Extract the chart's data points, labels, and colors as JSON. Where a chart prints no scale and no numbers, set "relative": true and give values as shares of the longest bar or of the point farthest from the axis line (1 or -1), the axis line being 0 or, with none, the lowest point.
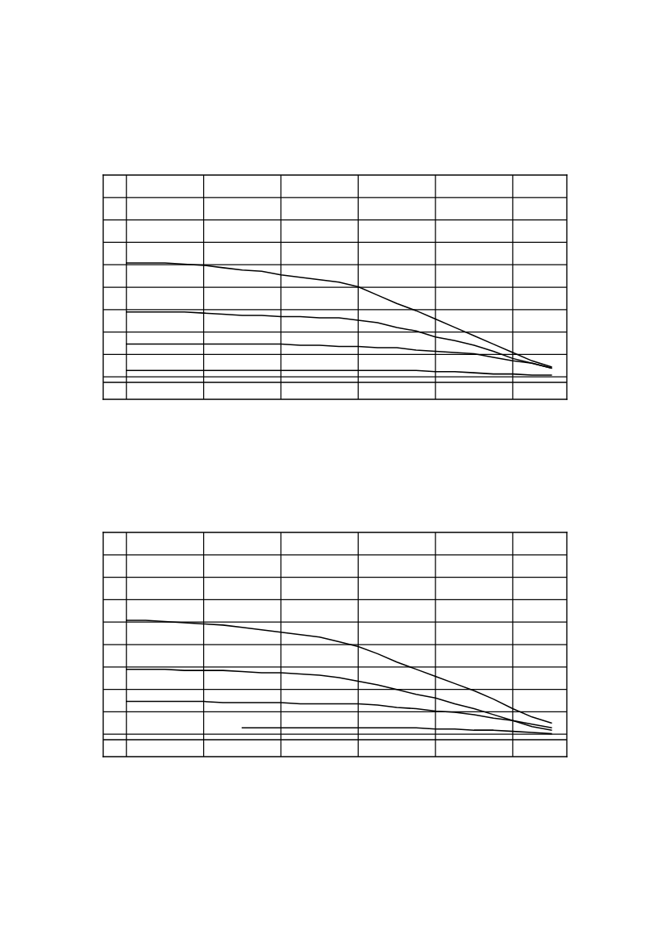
{
  "chart_data": [
    {
      "type": "line",
      "relative": true,
      "grid": true,
      "tick_labels": false,
      "marker": "none",
      "line_style": "solid",
      "categories": [
        null,
        null,
        null,
        null,
        null,
        null,
        null,
        null,
        null,
        null,
        null,
        null,
        null,
        null,
        null,
        null,
        null,
        null,
        null,
        null,
        null,
        null,
        null
      ],
      "series": [
        {
          "color": "#000000",
          "values": [
            1.0,
            1.0,
            1.0,
            0.99,
            0.98,
            0.96,
            0.94,
            0.93,
            0.9,
            0.88,
            0.86,
            0.84,
            0.8,
            0.73,
            0.66,
            0.6,
            0.53,
            0.46,
            0.39,
            0.32,
            0.25,
            0.18,
            0.13
          ]
        },
        {
          "color": "#000000",
          "values": [
            0.59,
            0.59,
            0.59,
            0.59,
            0.58,
            0.57,
            0.56,
            0.56,
            0.55,
            0.55,
            0.54,
            0.54,
            0.52,
            0.5,
            0.46,
            0.43,
            0.38,
            0.35,
            0.31,
            0.26,
            0.2,
            0.16,
            0.12
          ]
        },
        {
          "color": "#000000",
          "values": [
            0.32,
            0.32,
            0.32,
            0.32,
            0.32,
            0.32,
            0.32,
            0.32,
            0.32,
            0.31,
            0.31,
            0.3,
            0.3,
            0.29,
            0.29,
            0.27,
            0.26,
            0.25,
            0.24,
            0.21,
            0.18,
            0.16,
            0.12
          ]
        },
        {
          "color": "#000000",
          "values": [
            0.1,
            0.1,
            0.1,
            0.1,
            0.1,
            0.1,
            0.1,
            0.1,
            0.1,
            0.1,
            0.1,
            0.1,
            0.1,
            0.1,
            0.1,
            0.1,
            0.09,
            0.09,
            0.08,
            0.07,
            0.07,
            0.06,
            0.06
          ]
        }
      ]
    },
    {
      "type": "line",
      "relative": true,
      "grid": true,
      "tick_labels": false,
      "marker": "none",
      "line_style": "solid",
      "categories": [
        null,
        null,
        null,
        null,
        null,
        null,
        null,
        null,
        null,
        null,
        null,
        null,
        null,
        null,
        null,
        null,
        null,
        null,
        null,
        null,
        null,
        null,
        null
      ],
      "series": [
        {
          "color": "#000000",
          "values": [
            1.0,
            1.0,
            0.99,
            0.98,
            0.97,
            0.96,
            0.94,
            0.92,
            0.9,
            0.88,
            0.86,
            0.82,
            0.78,
            0.72,
            0.65,
            0.59,
            0.53,
            0.47,
            0.41,
            0.34,
            0.26,
            0.19,
            0.14
          ]
        },
        {
          "color": "#000000",
          "values": [
            0.59,
            0.59,
            0.59,
            0.58,
            0.58,
            0.58,
            0.57,
            0.56,
            0.56,
            0.55,
            0.54,
            0.52,
            0.49,
            0.46,
            0.42,
            0.38,
            0.35,
            0.3,
            0.26,
            0.21,
            0.16,
            0.11,
            0.08
          ]
        },
        {
          "color": "#000000",
          "values": [
            0.32,
            0.32,
            0.32,
            0.32,
            0.32,
            0.31,
            0.31,
            0.31,
            0.31,
            0.3,
            0.3,
            0.3,
            0.3,
            0.29,
            0.27,
            0.26,
            0.24,
            0.23,
            0.21,
            0.18,
            0.16,
            0.13,
            0.1
          ]
        },
        {
          "color": "#000000",
          "values": [
            null,
            null,
            null,
            null,
            null,
            null,
            0.1,
            0.1,
            0.1,
            0.1,
            0.1,
            0.1,
            0.1,
            0.1,
            0.1,
            0.1,
            0.09,
            0.09,
            0.08,
            0.08,
            0.07,
            0.06,
            0.05
          ]
        }
      ]
    }
  ]
}
